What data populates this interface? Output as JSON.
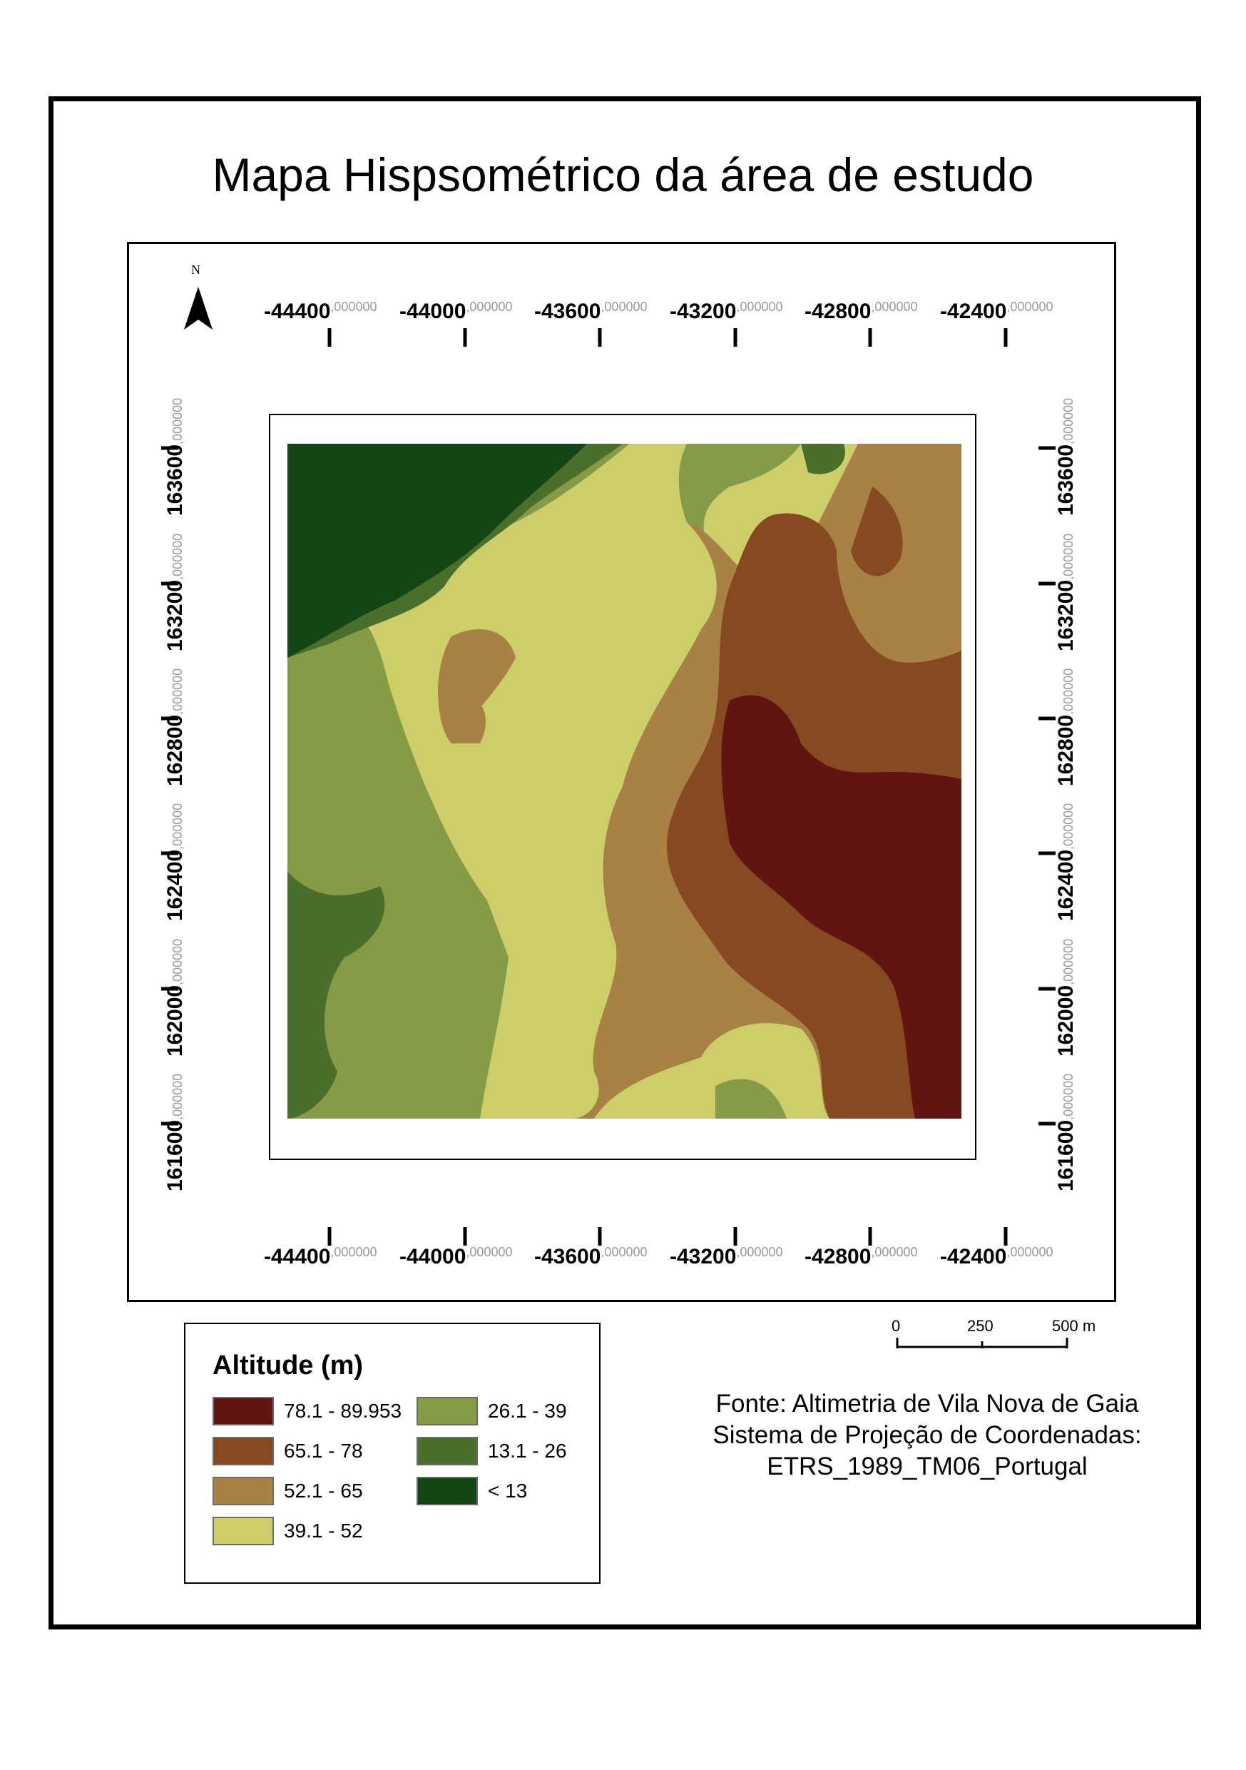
{
  "title": "Mapa Hispsométrico da área de estudo",
  "north_arrow": {
    "label": "N",
    "icon": "north-arrow-icon"
  },
  "graticule": {
    "x_ticks": [
      {
        "value": "-44400",
        "suffix": ",000000"
      },
      {
        "value": "-44000",
        "suffix": ",000000"
      },
      {
        "value": "-43600",
        "suffix": ",000000"
      },
      {
        "value": "-43200",
        "suffix": ",000000"
      },
      {
        "value": "-42800",
        "suffix": ",000000"
      },
      {
        "value": "-42400",
        "suffix": ",000000"
      }
    ],
    "y_ticks": [
      {
        "value": "163600",
        "suffix": ",000000"
      },
      {
        "value": "163200",
        "suffix": ",000000"
      },
      {
        "value": "162800",
        "suffix": ",000000"
      },
      {
        "value": "162400",
        "suffix": ",000000"
      },
      {
        "value": "162000",
        "suffix": ",000000"
      },
      {
        "value": "161600",
        "suffix": ",000000"
      }
    ]
  },
  "legend": {
    "title": "Altitude (m)",
    "classes": [
      {
        "label": "78.1 - 89.953",
        "color": "#621510"
      },
      {
        "label": "65.1 - 78",
        "color": "#874922"
      },
      {
        "label": "52.1 - 65",
        "color": "#a88245"
      },
      {
        "label": "39.1 - 52",
        "color": "#cdcd6a"
      },
      {
        "label": "26.1 - 39",
        "color": "#869b46"
      },
      {
        "label": "13.1 - 26",
        "color": "#4a6f2a"
      },
      {
        "label": "< 13",
        "color": "#134515"
      }
    ]
  },
  "scale_bar": {
    "labels": [
      "0",
      "250",
      "500 m"
    ]
  },
  "source": {
    "line1": "Fonte: Altimetria de Vila Nova de Gaia",
    "line2": "Sistema de Projeção de Coordenadas:",
    "line3": "ETRS_1989_TM06_Portugal"
  }
}
